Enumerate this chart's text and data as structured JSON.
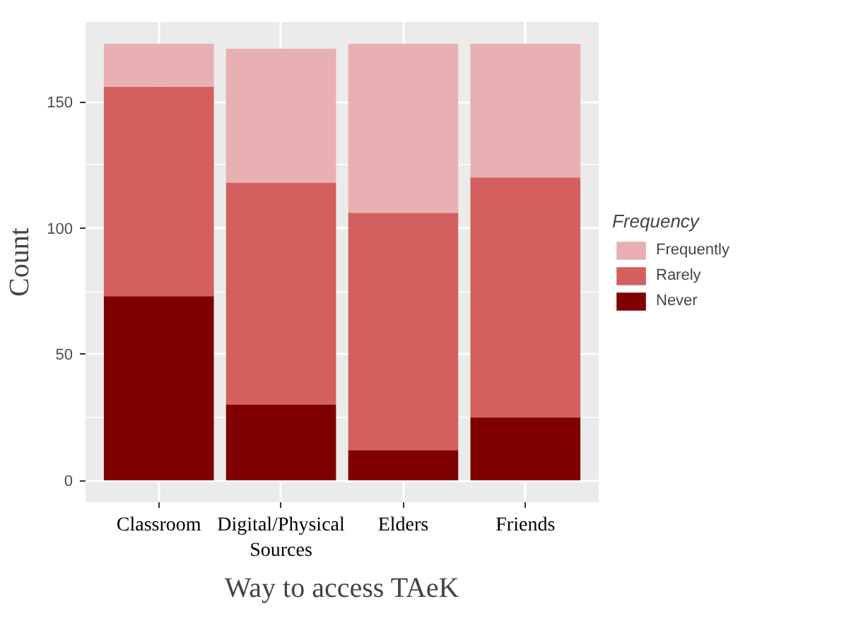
{
  "chart_data": {
    "type": "bar",
    "stacked": true,
    "xlabel": "Way to access TAeK",
    "ylabel": "Count",
    "legend_title": "Frequency",
    "legend": "right",
    "categories": [
      "Classroom",
      "Digital/Physical\nSources",
      "Elders",
      "Friends"
    ],
    "series": [
      {
        "name": "Never",
        "color": "#800000",
        "values": [
          73,
          30,
          12,
          25
        ]
      },
      {
        "name": "Rarely",
        "color": "#d45f5f",
        "values": [
          83,
          88,
          94,
          95
        ]
      },
      {
        "name": "Frequently",
        "color": "#e8b0b0",
        "values": [
          17,
          53,
          67,
          53
        ]
      }
    ],
    "ylim": [
      -8.65,
      181.65
    ],
    "yticks": [
      0,
      50,
      100,
      150
    ],
    "grid": true
  }
}
